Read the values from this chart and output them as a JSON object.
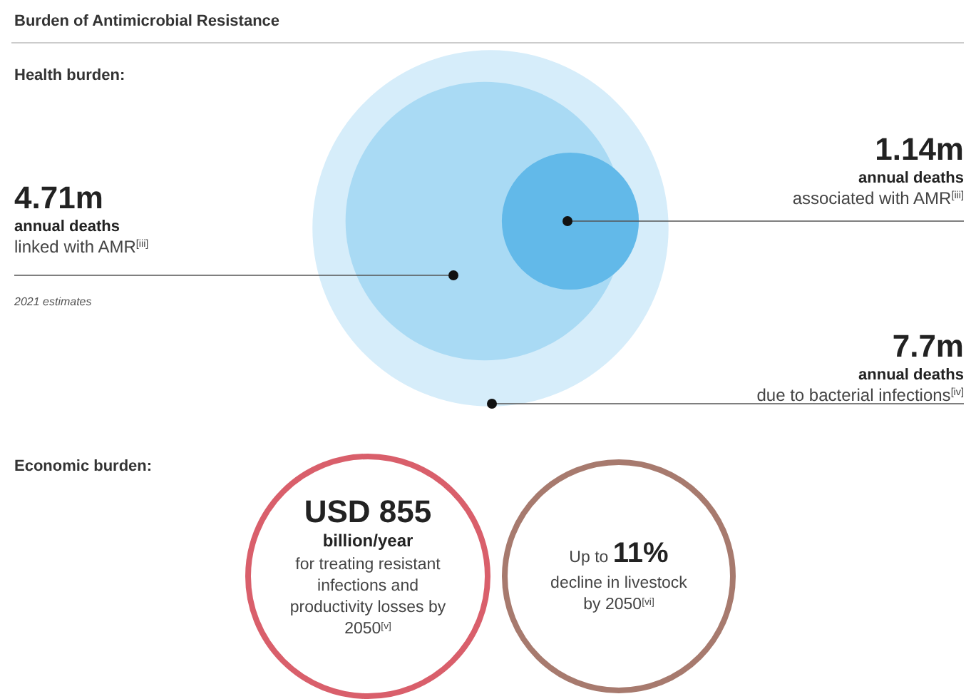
{
  "chart_data": [
    {
      "type": "other",
      "title": "Burden of Antimicrobial Resistance",
      "subtitle": "Health burden:",
      "categories": [
        "linked with AMR$^{[iii]}$",
        "associated with AMR$^{[iii]}$",
        "due to bacterial infections$^{[iv]}$"
      ],
      "series": [
        {
          "name": "annual deaths",
          "values": [
            4.71,
            1.14,
            7.7
          ],
          "value_labels": [
            "4.71m",
            "1.14m",
            "7.7m"
          ],
          "colors": [
            "#a9daf4",
            "#62b9e9",
            "#d6edfa"
          ]
        }
      ],
      "annotations": [
        "2021 estimates"
      ]
    },
    {
      "type": "other",
      "subtitle": "Economic burden:",
      "categories": [
        "for treating resistant infections and productivity losses by 2050$^{[v]}$",
        "decline in livestock by 2050$^{[vi]}$"
      ],
      "value_labels": [
        "USD 855",
        "11%"
      ],
      "colors": [
        "#d95f6b",
        "#a77a6e"
      ],
      "annotations": [
        "billion/year",
        "Up to"
      ]
    }
  ]
}
